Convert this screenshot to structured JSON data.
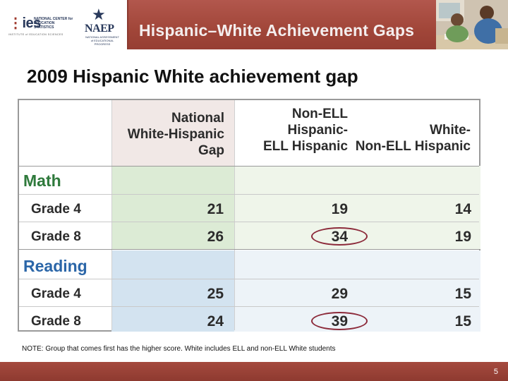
{
  "header": {
    "title": "Hispanic–White Achievement Gaps",
    "ies_logo": {
      "mark": "ies",
      "name": "NATIONAL CENTER for EDUCATION STATISTICS",
      "tagline": "INSTITUTE of EDUCATION SCIENCES"
    },
    "naep_logo": {
      "word": "NAEP",
      "subtitle": "NATIONAL ASSESSMENT of EDUCATIONAL PROGRESS"
    }
  },
  "slide": {
    "title": "2009 Hispanic White achievement gap"
  },
  "table": {
    "columns": [
      "National\nWhite-Hispanic\nGap",
      "Non-ELL\nHispanic-\nELL Hispanic",
      "White-\nNon-ELL Hispanic"
    ],
    "sections": [
      {
        "label": "Math",
        "color": "#2f7a3c",
        "rows": [
          {
            "label": "Grade 4",
            "values": [
              "21",
              "19",
              "14"
            ],
            "circled": []
          },
          {
            "label": "Grade 8",
            "values": [
              "26",
              "34",
              "19"
            ],
            "circled": [
              1
            ]
          }
        ]
      },
      {
        "label": "Reading",
        "color": "#2b66a8",
        "rows": [
          {
            "label": "Grade 4",
            "values": [
              "25",
              "29",
              "15"
            ],
            "circled": []
          },
          {
            "label": "Grade 8",
            "values": [
              "24",
              "39",
              "15"
            ],
            "circled": [
              1
            ]
          }
        ]
      }
    ]
  },
  "note": "NOTE: Group that comes first has the higher score. White includes ELL and non-ELL White students",
  "footer": {
    "page_number": "5"
  },
  "colors": {
    "header_bg": "#a14639",
    "highlight_circle": "#8c2a3a"
  }
}
